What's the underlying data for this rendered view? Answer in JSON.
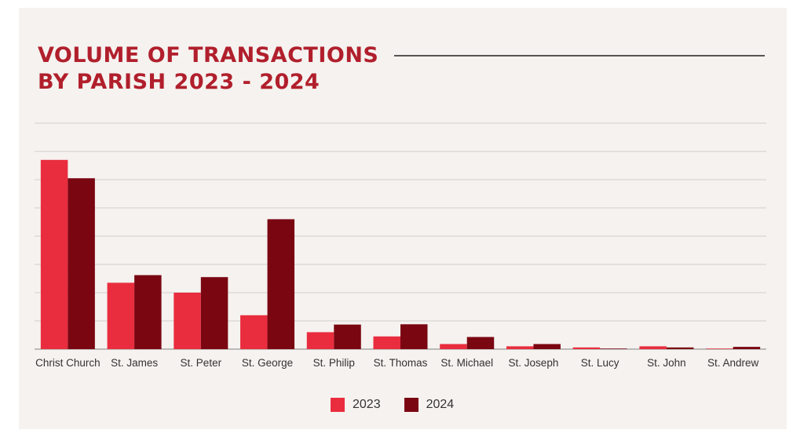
{
  "colors": {
    "series_2023": "#e92d3e",
    "series_2024": "#7a0612",
    "title": "#b11f2c",
    "grid": "#d2cfcc",
    "axis": "#9a9896"
  },
  "chart_data": {
    "type": "bar",
    "title_lines": [
      "VOLUME OF TRANSACTIONS",
      "BY PARISH 2023 - 2024"
    ],
    "categories": [
      "Christ Church",
      "St. James",
      "St. Peter",
      "St. George",
      "St. Philip",
      "St. Thomas",
      "St. Michael",
      "St. Joseph",
      "St. Lucy",
      "St. John",
      "St. Andrew"
    ],
    "series": [
      {
        "name": "2023",
        "values": [
          6.7,
          2.35,
          2.0,
          1.2,
          0.6,
          0.45,
          0.18,
          0.1,
          0.06,
          0.1,
          0.02
        ]
      },
      {
        "name": "2024",
        "values": [
          6.05,
          2.62,
          2.55,
          4.6,
          0.87,
          0.88,
          0.43,
          0.18,
          0.02,
          0.06,
          0.08
        ]
      }
    ],
    "ylim": [
      0,
      8
    ],
    "grid": true,
    "y_tick_labels_shown": false,
    "legend_position": "bottom-center"
  }
}
